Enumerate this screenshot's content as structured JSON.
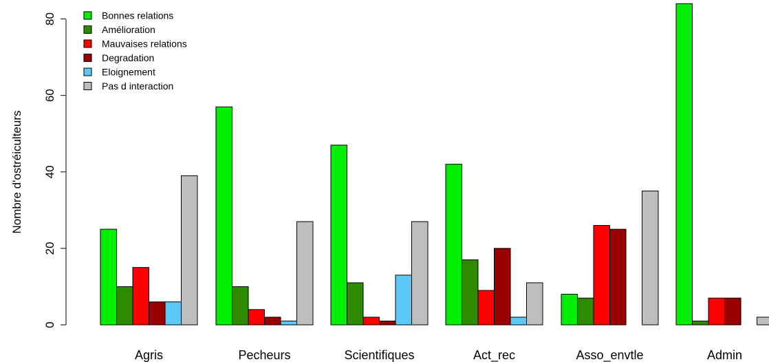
{
  "chart_data": {
    "type": "bar",
    "title": "",
    "xlabel": "",
    "ylabel": "Nombre d'ostréiculteurs",
    "categories": [
      "Agris",
      "Pecheurs",
      "Scientifiques",
      "Act_rec",
      "Asso_envtle",
      "Admin"
    ],
    "series": [
      {
        "name": "Bonnes relations",
        "color": "#00ee00",
        "values": [
          25,
          57,
          47,
          42,
          8,
          84
        ]
      },
      {
        "name": "Amélioration",
        "color": "#2e8b00",
        "values": [
          10,
          10,
          11,
          17,
          7,
          1
        ]
      },
      {
        "name": "Mauvaises relations",
        "color": "#ff0000",
        "values": [
          15,
          4,
          2,
          9,
          26,
          7
        ]
      },
      {
        "name": "Degradation",
        "color": "#990000",
        "values": [
          6,
          2,
          1,
          20,
          25,
          7
        ]
      },
      {
        "name": "Eloignement",
        "color": "#5bc8f5",
        "values": [
          6,
          1,
          13,
          2,
          0,
          0
        ]
      },
      {
        "name": "Pas d interaction",
        "color": "#bebebe",
        "values": [
          39,
          27,
          27,
          11,
          35,
          2
        ]
      }
    ],
    "yticks": [
      "0",
      "20",
      "40",
      "60",
      "80"
    ],
    "ylim": [
      0,
      84
    ],
    "grid": false,
    "legend_position": "top-left",
    "barmode": "grouped"
  }
}
